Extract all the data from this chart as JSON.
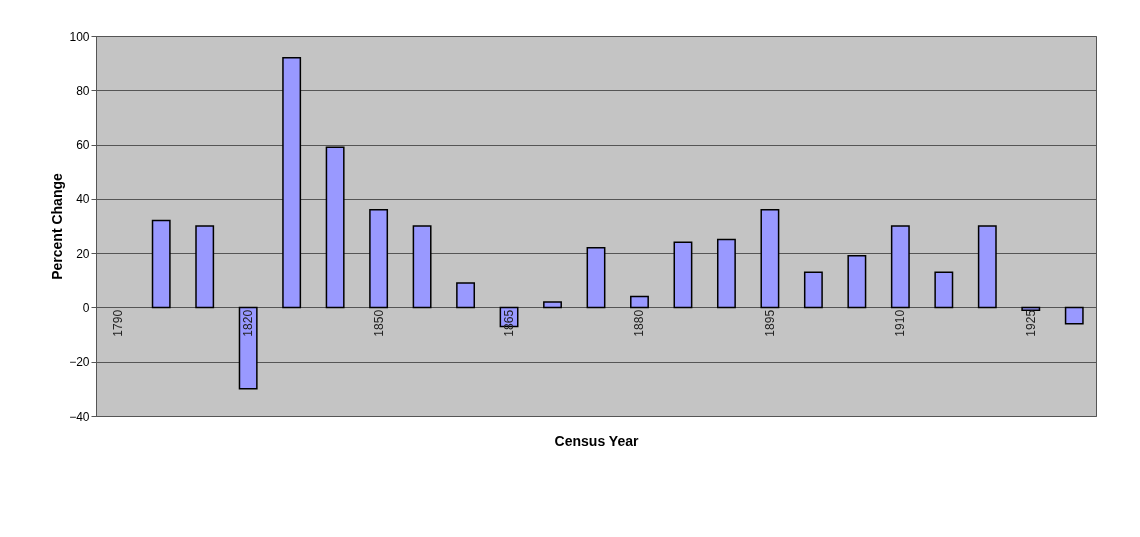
{
  "chart_data": {
    "type": "bar",
    "xlabel": "Census Year",
    "ylabel": "Percent Change",
    "categories": [
      "1790",
      null,
      null,
      "1820",
      null,
      null,
      "1850",
      null,
      null,
      "1865",
      null,
      null,
      "1880",
      null,
      null,
      "1895",
      null,
      null,
      "1910",
      null,
      null,
      "1925",
      null
    ],
    "values": [
      null,
      32,
      30,
      -30,
      92,
      59,
      36,
      30,
      9,
      -7,
      2,
      22,
      4,
      24,
      25,
      36,
      13,
      19,
      30,
      13,
      30,
      -1,
      -6
    ],
    "color": "#9999ff",
    "ylim": [
      -40,
      100
    ],
    "yticks": [
      -40,
      -20,
      0,
      20,
      40,
      60,
      80,
      100
    ],
    "grid": "y"
  }
}
